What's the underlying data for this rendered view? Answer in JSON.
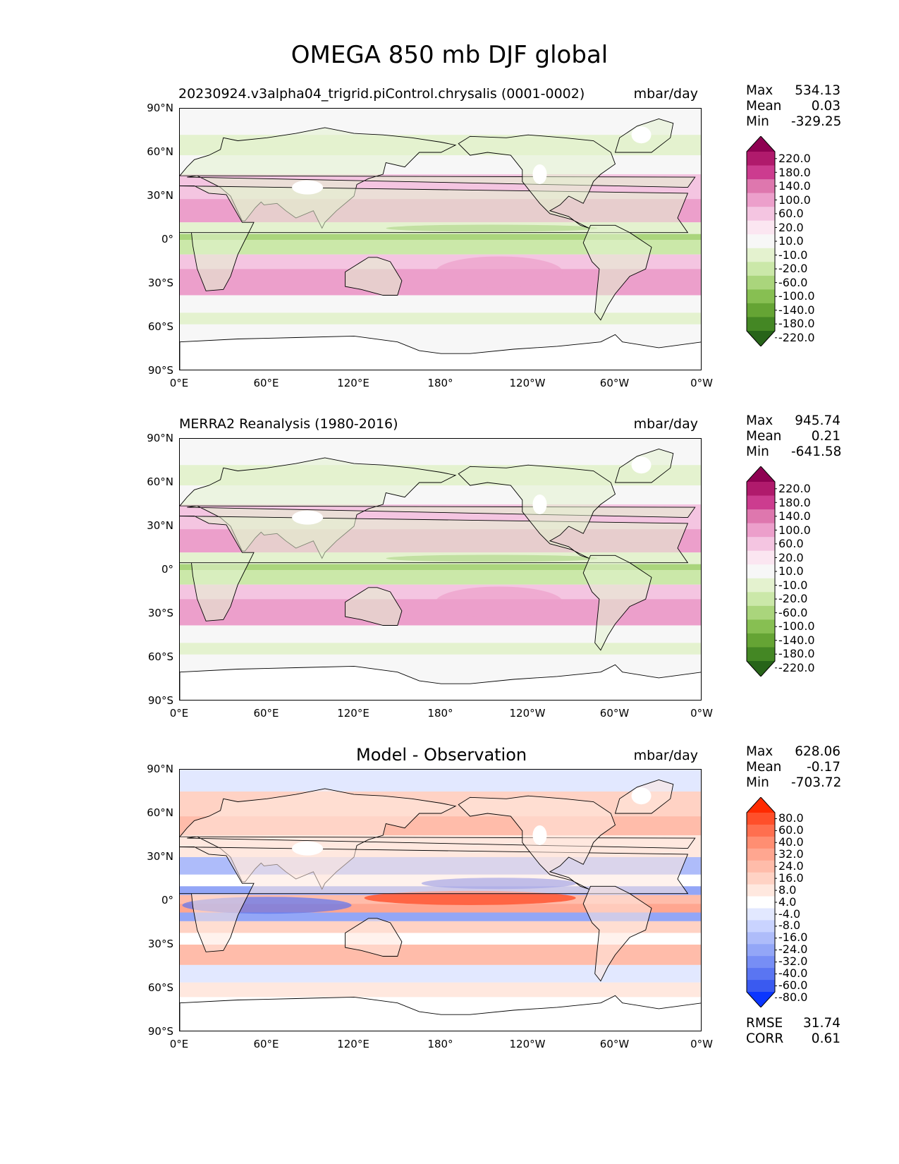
{
  "title": "OMEGA 850 mb DJF global",
  "chart_data": [
    {
      "type": "heatmap",
      "title": "20230924.v3alpha04_trigrid.piControl.chrysalis (0001-0002)",
      "units": "mbar/day",
      "stats": {
        "max": "534.13",
        "mean": "0.03",
        "min": "-329.25"
      },
      "xticks": [
        "0°E",
        "60°E",
        "120°E",
        "180°",
        "120°W",
        "60°W",
        "0°W"
      ],
      "yticks": [
        "90°N",
        "60°N",
        "30°N",
        "0°",
        "30°S",
        "60°S",
        "90°S"
      ],
      "xlim": [
        0,
        360
      ],
      "ylim": [
        -90,
        90
      ],
      "colorbar": {
        "labels": [
          "220.0",
          "180.0",
          "140.0",
          "100.0",
          "60.0",
          "20.0",
          "10.0",
          "-10.0",
          "-20.0",
          "-60.0",
          "-100.0",
          "-140.0",
          "-180.0",
          "-220.0"
        ],
        "colors": [
          "#8e0152",
          "#b01a6c",
          "#cc3c8f",
          "#de77ae",
          "#ec9fcb",
          "#f4c5e1",
          "#fbe6f1",
          "#f7f7f7",
          "#e4f2cf",
          "#cbe8a9",
          "#aad57c",
          "#87bf52",
          "#65a434",
          "#448724",
          "#276419"
        ]
      }
    },
    {
      "type": "heatmap",
      "title": "MERRA2 Reanalysis (1980-2016)",
      "units": "mbar/day",
      "stats": {
        "max": "945.74",
        "mean": "0.21",
        "min": "-641.58"
      },
      "xticks": [
        "0°E",
        "60°E",
        "120°E",
        "180°",
        "120°W",
        "60°W",
        "0°W"
      ],
      "yticks": [
        "90°N",
        "60°N",
        "30°N",
        "0°",
        "30°S",
        "60°S",
        "90°S"
      ],
      "xlim": [
        0,
        360
      ],
      "ylim": [
        -90,
        90
      ],
      "colorbar": {
        "labels": [
          "220.0",
          "180.0",
          "140.0",
          "100.0",
          "60.0",
          "20.0",
          "10.0",
          "-10.0",
          "-20.0",
          "-60.0",
          "-100.0",
          "-140.0",
          "-180.0",
          "-220.0"
        ],
        "colors": [
          "#8e0152",
          "#b01a6c",
          "#cc3c8f",
          "#de77ae",
          "#ec9fcb",
          "#f4c5e1",
          "#fbe6f1",
          "#f7f7f7",
          "#e4f2cf",
          "#cbe8a9",
          "#aad57c",
          "#87bf52",
          "#65a434",
          "#448724",
          "#276419"
        ]
      }
    },
    {
      "type": "heatmap",
      "title": "Model - Observation",
      "units": "mbar/day",
      "stats": {
        "max": "628.06",
        "mean": "-0.17",
        "min": "-703.72"
      },
      "rmse": "31.74",
      "corr": "0.61",
      "xticks": [
        "0°E",
        "60°E",
        "120°E",
        "180°",
        "120°W",
        "60°W",
        "0°W"
      ],
      "yticks": [
        "90°N",
        "60°N",
        "30°N",
        "0°",
        "30°S",
        "60°S",
        "90°S"
      ],
      "xlim": [
        0,
        360
      ],
      "ylim": [
        -90,
        90
      ],
      "colorbar": {
        "labels": [
          "80.0",
          "60.0",
          "40.0",
          "32.0",
          "24.0",
          "16.0",
          "8.0",
          "4.0",
          "-4.0",
          "-8.0",
          "-16.0",
          "-24.0",
          "-32.0",
          "-40.0",
          "-60.0",
          "-80.0"
        ],
        "colors": [
          "#ff2a00",
          "#ff4f2a",
          "#ff6f4f",
          "#ff8e72",
          "#ffa690",
          "#ffbcaa",
          "#ffd2c4",
          "#ffe8df",
          "#ffffff",
          "#e2e8ff",
          "#c9d3ff",
          "#aebcfa",
          "#93a6f7",
          "#778ef5",
          "#5a75f2",
          "#3a5af0",
          "#0b36ff"
        ]
      }
    }
  ],
  "stat_labels": {
    "max": "Max",
    "mean": "Mean",
    "min": "Min",
    "rmse": "RMSE",
    "corr": "CORR"
  }
}
